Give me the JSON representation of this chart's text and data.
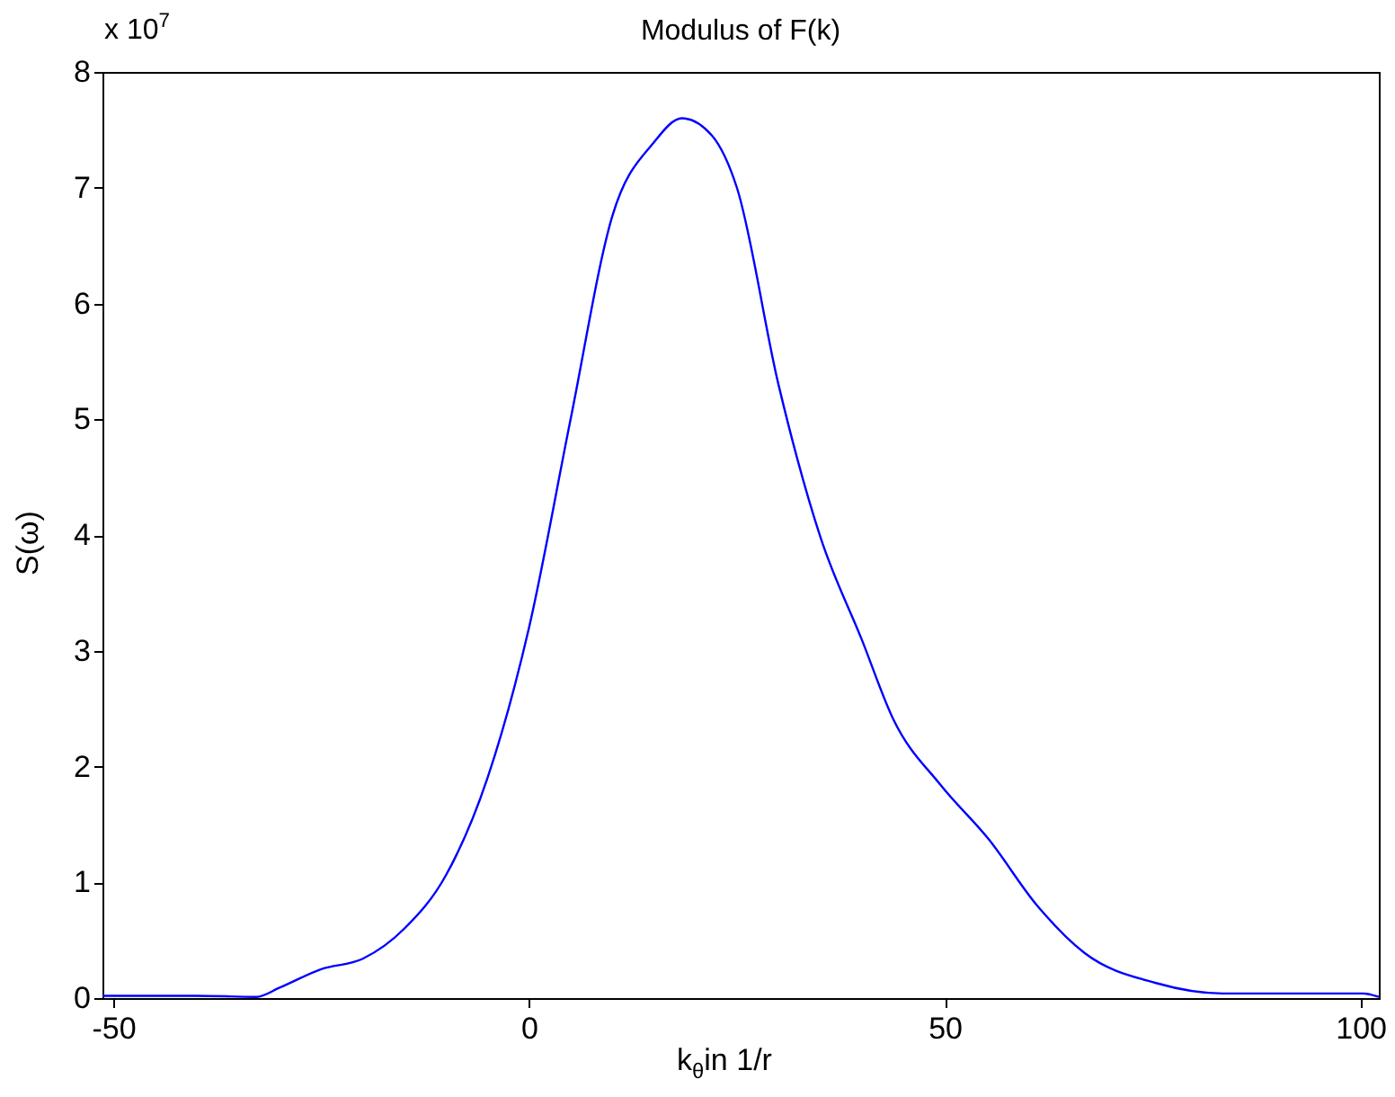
{
  "chart_data": {
    "type": "line",
    "title": "Modulus of F(k)",
    "xlabel": "k$_{θ}$in 1/r",
    "ylabel": "S(ω)",
    "annotations": [
      "x 10$^{7}$"
    ],
    "x": [
      -51.3,
      -40,
      -32.8,
      -30,
      -25,
      -20,
      -15,
      -10,
      -5,
      0,
      5,
      10,
      15,
      18.4,
      22,
      25,
      30,
      35.1,
      40,
      43.8,
      49.5,
      55.3,
      61.1,
      66.8,
      75.4,
      83.4,
      100.3,
      102.2
    ],
    "series": [
      {
        "color": "#0000ff",
        "values": [
          0.02,
          0.02,
          0.01,
          0.09,
          0.25,
          0.34,
          0.6,
          1.06,
          1.9,
          3.2,
          5.0,
          6.75,
          7.39,
          7.6,
          7.45,
          7.0,
          5.3,
          3.97,
          3.1,
          2.41,
          1.84,
          1.37,
          0.8,
          0.39,
          0.13,
          0.04,
          0.04,
          0.01
        ]
      }
    ],
    "xlim": [
      -51.3,
      102.2
    ],
    "xticks": [
      -50,
      0,
      50,
      100
    ],
    "ylim": [
      0,
      8
    ],
    "yticks": [
      0,
      1,
      2,
      3,
      4,
      5,
      6,
      7,
      8
    ],
    "marker": "none",
    "line_style": "solid"
  }
}
